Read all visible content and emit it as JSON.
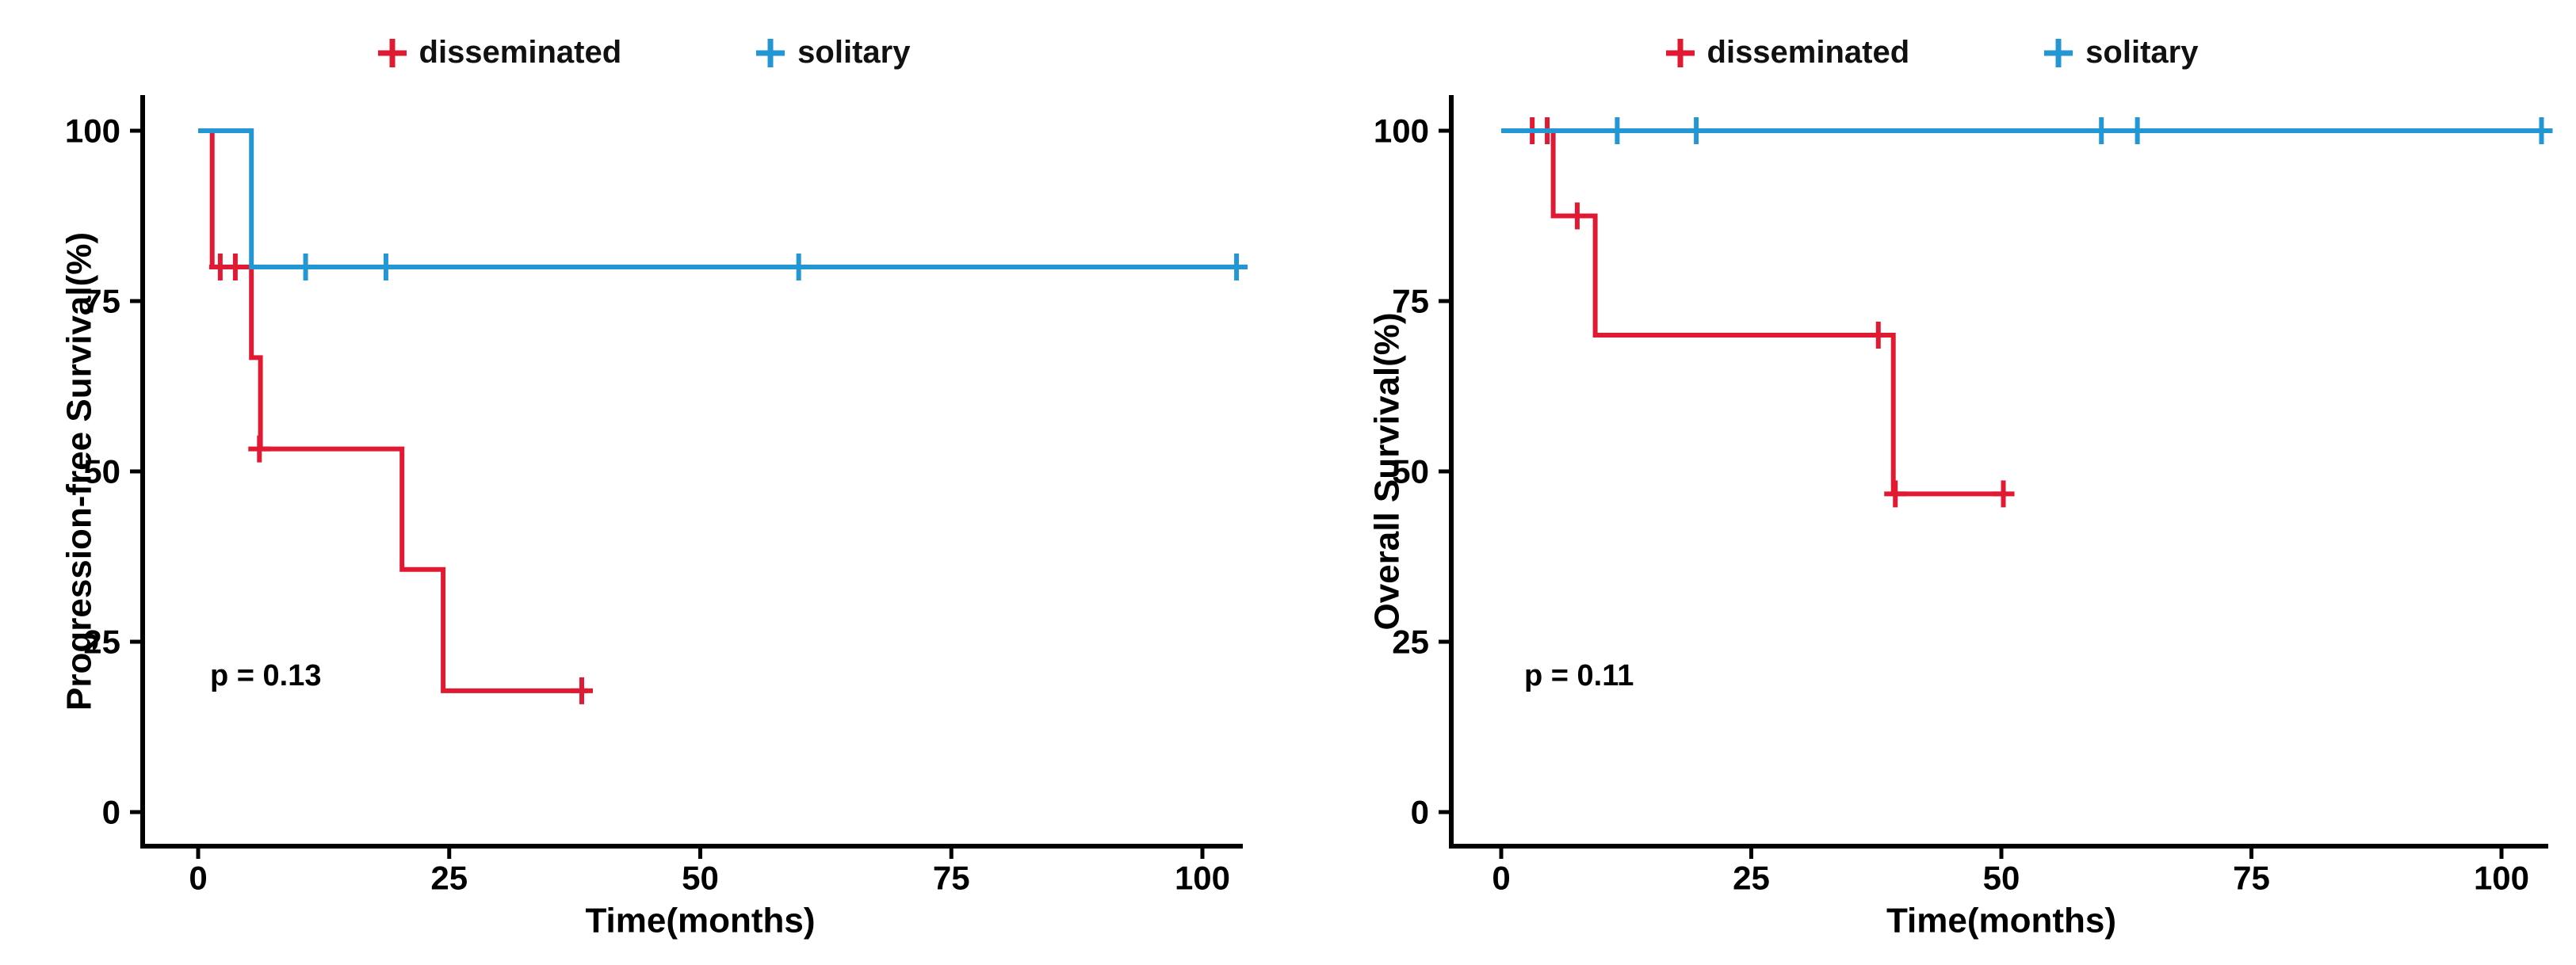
{
  "figure": {
    "background": "#ffffff"
  },
  "colors": {
    "disseminated": "#e01a32",
    "solitary": "#2397d3",
    "axis": "#000000",
    "text": "#000000"
  },
  "legend": {
    "items": [
      {
        "label": "disseminated",
        "color": "#e01a32",
        "marker": "plus-icon"
      },
      {
        "label": "solitary",
        "color": "#2397d3",
        "marker": "plus-icon"
      }
    ]
  },
  "chart_data": [
    {
      "type": "line",
      "subtype": "kaplan-meier-step",
      "title": "",
      "xlabel": "Time(months)",
      "ylabel": "Progression-free Survival(%)",
      "p_value_label": "p = 0.13",
      "xlim": [
        0,
        105
      ],
      "ylim": [
        0,
        100
      ],
      "xticks": [
        0,
        25,
        50,
        75,
        100
      ],
      "yticks": [
        0,
        25,
        50,
        75,
        100
      ],
      "grid": false,
      "legend_position": "top",
      "series": [
        {
          "name": "disseminated",
          "color": "#e01a32",
          "steps": [
            [
              0,
              100
            ],
            [
              1.4,
              100
            ],
            [
              1.4,
              80
            ],
            [
              5.3,
              80
            ],
            [
              5.3,
              66.7
            ],
            [
              6.2,
              66.7
            ],
            [
              6.2,
              53.3
            ],
            [
              20.3,
              53.3
            ],
            [
              20.3,
              35.6
            ],
            [
              24.4,
              35.6
            ],
            [
              24.4,
              17.8
            ],
            [
              38.8,
              17.8
            ]
          ],
          "censors": [
            [
              2.2,
              80
            ],
            [
              3.7,
              80
            ],
            [
              6.1,
              53.3
            ],
            [
              38.2,
              17.8
            ]
          ]
        },
        {
          "name": "solitary",
          "color": "#2397d3",
          "steps": [
            [
              0,
              100
            ],
            [
              5.3,
              100
            ],
            [
              5.3,
              80
            ],
            [
              103.7,
              80
            ]
          ],
          "censors": [
            [
              10.7,
              80
            ],
            [
              18.7,
              80
            ],
            [
              59.8,
              80
            ],
            [
              103.4,
              80
            ]
          ]
        }
      ]
    },
    {
      "type": "line",
      "subtype": "kaplan-meier-step",
      "title": "",
      "xlabel": "Time(months)",
      "ylabel": "Overall Survival(%)",
      "p_value_label": "p = 0.11",
      "xlim": [
        0,
        105
      ],
      "ylim": [
        0,
        100
      ],
      "xticks": [
        0,
        25,
        50,
        75,
        100
      ],
      "yticks": [
        0,
        25,
        50,
        75,
        100
      ],
      "grid": false,
      "legend_position": "top",
      "series": [
        {
          "name": "disseminated",
          "color": "#e01a32",
          "steps": [
            [
              0,
              100
            ],
            [
              5.2,
              100
            ],
            [
              5.2,
              87.5
            ],
            [
              9.4,
              87.5
            ],
            [
              9.4,
              70
            ],
            [
              39.2,
              70
            ],
            [
              39.2,
              46.7
            ],
            [
              50.5,
              46.7
            ]
          ],
          "censors": [
            [
              3.1,
              100
            ],
            [
              4.6,
              100
            ],
            [
              7.6,
              87.5
            ],
            [
              37.7,
              70
            ],
            [
              39.4,
              46.7
            ],
            [
              50.2,
              46.7
            ]
          ]
        },
        {
          "name": "solitary",
          "color": "#2397d3",
          "steps": [
            [
              0,
              100
            ],
            [
              104.5,
              100
            ]
          ],
          "censors": [
            [
              11.6,
              100
            ],
            [
              19.5,
              100
            ],
            [
              60,
              100
            ],
            [
              63.6,
              100
            ],
            [
              104,
              100
            ]
          ]
        }
      ]
    }
  ]
}
